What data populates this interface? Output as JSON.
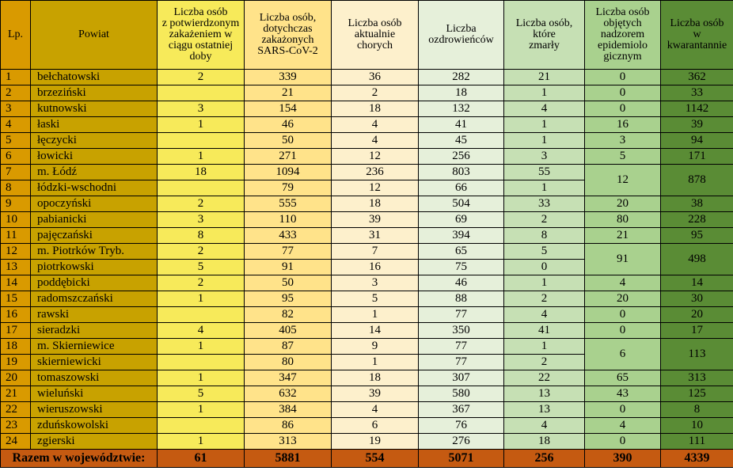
{
  "headers": [
    "Lp.",
    "Powiat",
    "Liczba osób z potwierdzonym zakażeniem w ciągu ostatniej doby",
    "Liczba osób, dotychczas zakażonych SARS-CoV-2",
    "Liczba osób aktualnie chorych",
    "Liczba ozdrowieńców",
    "Liczba osób, które zmarły",
    "Liczba osób objętych nadzorem epidemiologicznym",
    "Liczba osób w kwarantannie"
  ],
  "header_lines": {
    "daily": [
      "Liczba osób",
      "z potwierdzonym",
      "zakażeniem w",
      "ciągu ostatniej",
      "doby"
    ],
    "total": [
      "Liczba osób,",
      "dotychczas",
      "zakażonych",
      "SARS-CoV-2"
    ],
    "sick": [
      "Liczba osób",
      "aktualnie",
      "chorych"
    ],
    "recovered": [
      "Liczba",
      "ozdrowieńców"
    ],
    "deaths": [
      "Liczba osób,",
      "które",
      "zmarły"
    ],
    "supervision": [
      "Liczba osób",
      "objętych",
      "nadzorem",
      "epidemiolo",
      "gicznym"
    ],
    "quarantine": [
      "Liczba osób",
      "w",
      "kwarantannie"
    ]
  },
  "rows": [
    {
      "lp": "1",
      "powiat": "bełchatowski",
      "daily": "2",
      "total": "339",
      "sick": "36",
      "recovered": "282",
      "deaths": "21",
      "supervision": "0",
      "quarantine": "362"
    },
    {
      "lp": "2",
      "powiat": "brzeziński",
      "daily": "",
      "total": "21",
      "sick": "2",
      "recovered": "18",
      "deaths": "1",
      "supervision": "0",
      "quarantine": "33"
    },
    {
      "lp": "3",
      "powiat": "kutnowski",
      "daily": "3",
      "total": "154",
      "sick": "18",
      "recovered": "132",
      "deaths": "4",
      "supervision": "0",
      "quarantine": "1142"
    },
    {
      "lp": "4",
      "powiat": "łaski",
      "daily": "1",
      "total": "46",
      "sick": "4",
      "recovered": "41",
      "deaths": "1",
      "supervision": "16",
      "quarantine": "39"
    },
    {
      "lp": "5",
      "powiat": "łęczycki",
      "daily": "",
      "total": "50",
      "sick": "4",
      "recovered": "45",
      "deaths": "1",
      "supervision": "3",
      "quarantine": "94"
    },
    {
      "lp": "6",
      "powiat": "łowicki",
      "daily": "1",
      "total": "271",
      "sick": "12",
      "recovered": "256",
      "deaths": "3",
      "supervision": "5",
      "quarantine": "171"
    },
    {
      "lp": "7",
      "powiat": "m. Łódź",
      "daily": "18",
      "total": "1094",
      "sick": "236",
      "recovered": "803",
      "deaths": "55",
      "supervision": "12",
      "quarantine": "878"
    },
    {
      "lp": "8",
      "powiat": "łódzki-wschodni",
      "daily": "",
      "total": "79",
      "sick": "12",
      "recovered": "66",
      "deaths": "1"
    },
    {
      "lp": "9",
      "powiat": "opoczyński",
      "daily": "2",
      "total": "555",
      "sick": "18",
      "recovered": "504",
      "deaths": "33",
      "supervision": "20",
      "quarantine": "38"
    },
    {
      "lp": "10",
      "powiat": "pabianicki",
      "daily": "3",
      "total": "110",
      "sick": "39",
      "recovered": "69",
      "deaths": "2",
      "supervision": "80",
      "quarantine": "228"
    },
    {
      "lp": "11",
      "powiat": "pajęczański",
      "daily": "8",
      "total": "433",
      "sick": "31",
      "recovered": "394",
      "deaths": "8",
      "supervision": "21",
      "quarantine": "95"
    },
    {
      "lp": "12",
      "powiat": "m. Piotrków Tryb.",
      "daily": "2",
      "total": "77",
      "sick": "7",
      "recovered": "65",
      "deaths": "5",
      "supervision": "91",
      "quarantine": "498"
    },
    {
      "lp": "13",
      "powiat": "piotrkowski",
      "daily": "5",
      "total": "91",
      "sick": "16",
      "recovered": "75",
      "deaths": "0"
    },
    {
      "lp": "14",
      "powiat": "poddębicki",
      "daily": "2",
      "total": "50",
      "sick": "3",
      "recovered": "46",
      "deaths": "1",
      "supervision": "4",
      "quarantine": "14"
    },
    {
      "lp": "15",
      "powiat": "radomszczański",
      "daily": "1",
      "total": "95",
      "sick": "5",
      "recovered": "88",
      "deaths": "2",
      "supervision": "20",
      "quarantine": "30"
    },
    {
      "lp": "16",
      "powiat": "rawski",
      "daily": "",
      "total": "82",
      "sick": "1",
      "recovered": "77",
      "deaths": "4",
      "supervision": "0",
      "quarantine": "20"
    },
    {
      "lp": "17",
      "powiat": "sieradzki",
      "daily": "4",
      "total": "405",
      "sick": "14",
      "recovered": "350",
      "deaths": "41",
      "supervision": "0",
      "quarantine": "17"
    },
    {
      "lp": "18",
      "powiat": "m. Skierniewice",
      "daily": "1",
      "total": "87",
      "sick": "9",
      "recovered": "77",
      "deaths": "1",
      "supervision": "6",
      "quarantine": "113"
    },
    {
      "lp": "19",
      "powiat": "skierniewicki",
      "daily": "",
      "total": "80",
      "sick": "1",
      "recovered": "77",
      "deaths": "2"
    },
    {
      "lp": "20",
      "powiat": "tomaszowski",
      "daily": "1",
      "total": "347",
      "sick": "18",
      "recovered": "307",
      "deaths": "22",
      "supervision": "65",
      "quarantine": "313"
    },
    {
      "lp": "21",
      "powiat": "wieluński",
      "daily": "5",
      "total": "632",
      "sick": "39",
      "recovered": "580",
      "deaths": "13",
      "supervision": "43",
      "quarantine": "125"
    },
    {
      "lp": "22",
      "powiat": "wieruszowski",
      "daily": "1",
      "total": "384",
      "sick": "4",
      "recovered": "367",
      "deaths": "13",
      "supervision": "0",
      "quarantine": "8"
    },
    {
      "lp": "23",
      "powiat": "zduńskowolski",
      "daily": "",
      "total": "86",
      "sick": "6",
      "recovered": "76",
      "deaths": "4",
      "supervision": "4",
      "quarantine": "10"
    },
    {
      "lp": "24",
      "powiat": "zgierski",
      "daily": "1",
      "total": "313",
      "sick": "19",
      "recovered": "276",
      "deaths": "18",
      "supervision": "0",
      "quarantine": "111"
    }
  ],
  "total": {
    "label": "Razem w województwie:",
    "daily": "61",
    "total": "5881",
    "sick": "554",
    "recovered": "5071",
    "deaths": "256",
    "supervision": "390",
    "quarantine": "4339"
  },
  "colors": {
    "lp": "#d99a00",
    "powiat": "#c8a200",
    "daily": "#f7ea5a",
    "total": "#ffe38a",
    "sick": "#fdf0cc",
    "recovered": "#e6f0da",
    "deaths": "#c6e0b4",
    "supervision": "#a9d18e",
    "quarantine": "#5a8c35",
    "footer": "#c55a11"
  }
}
